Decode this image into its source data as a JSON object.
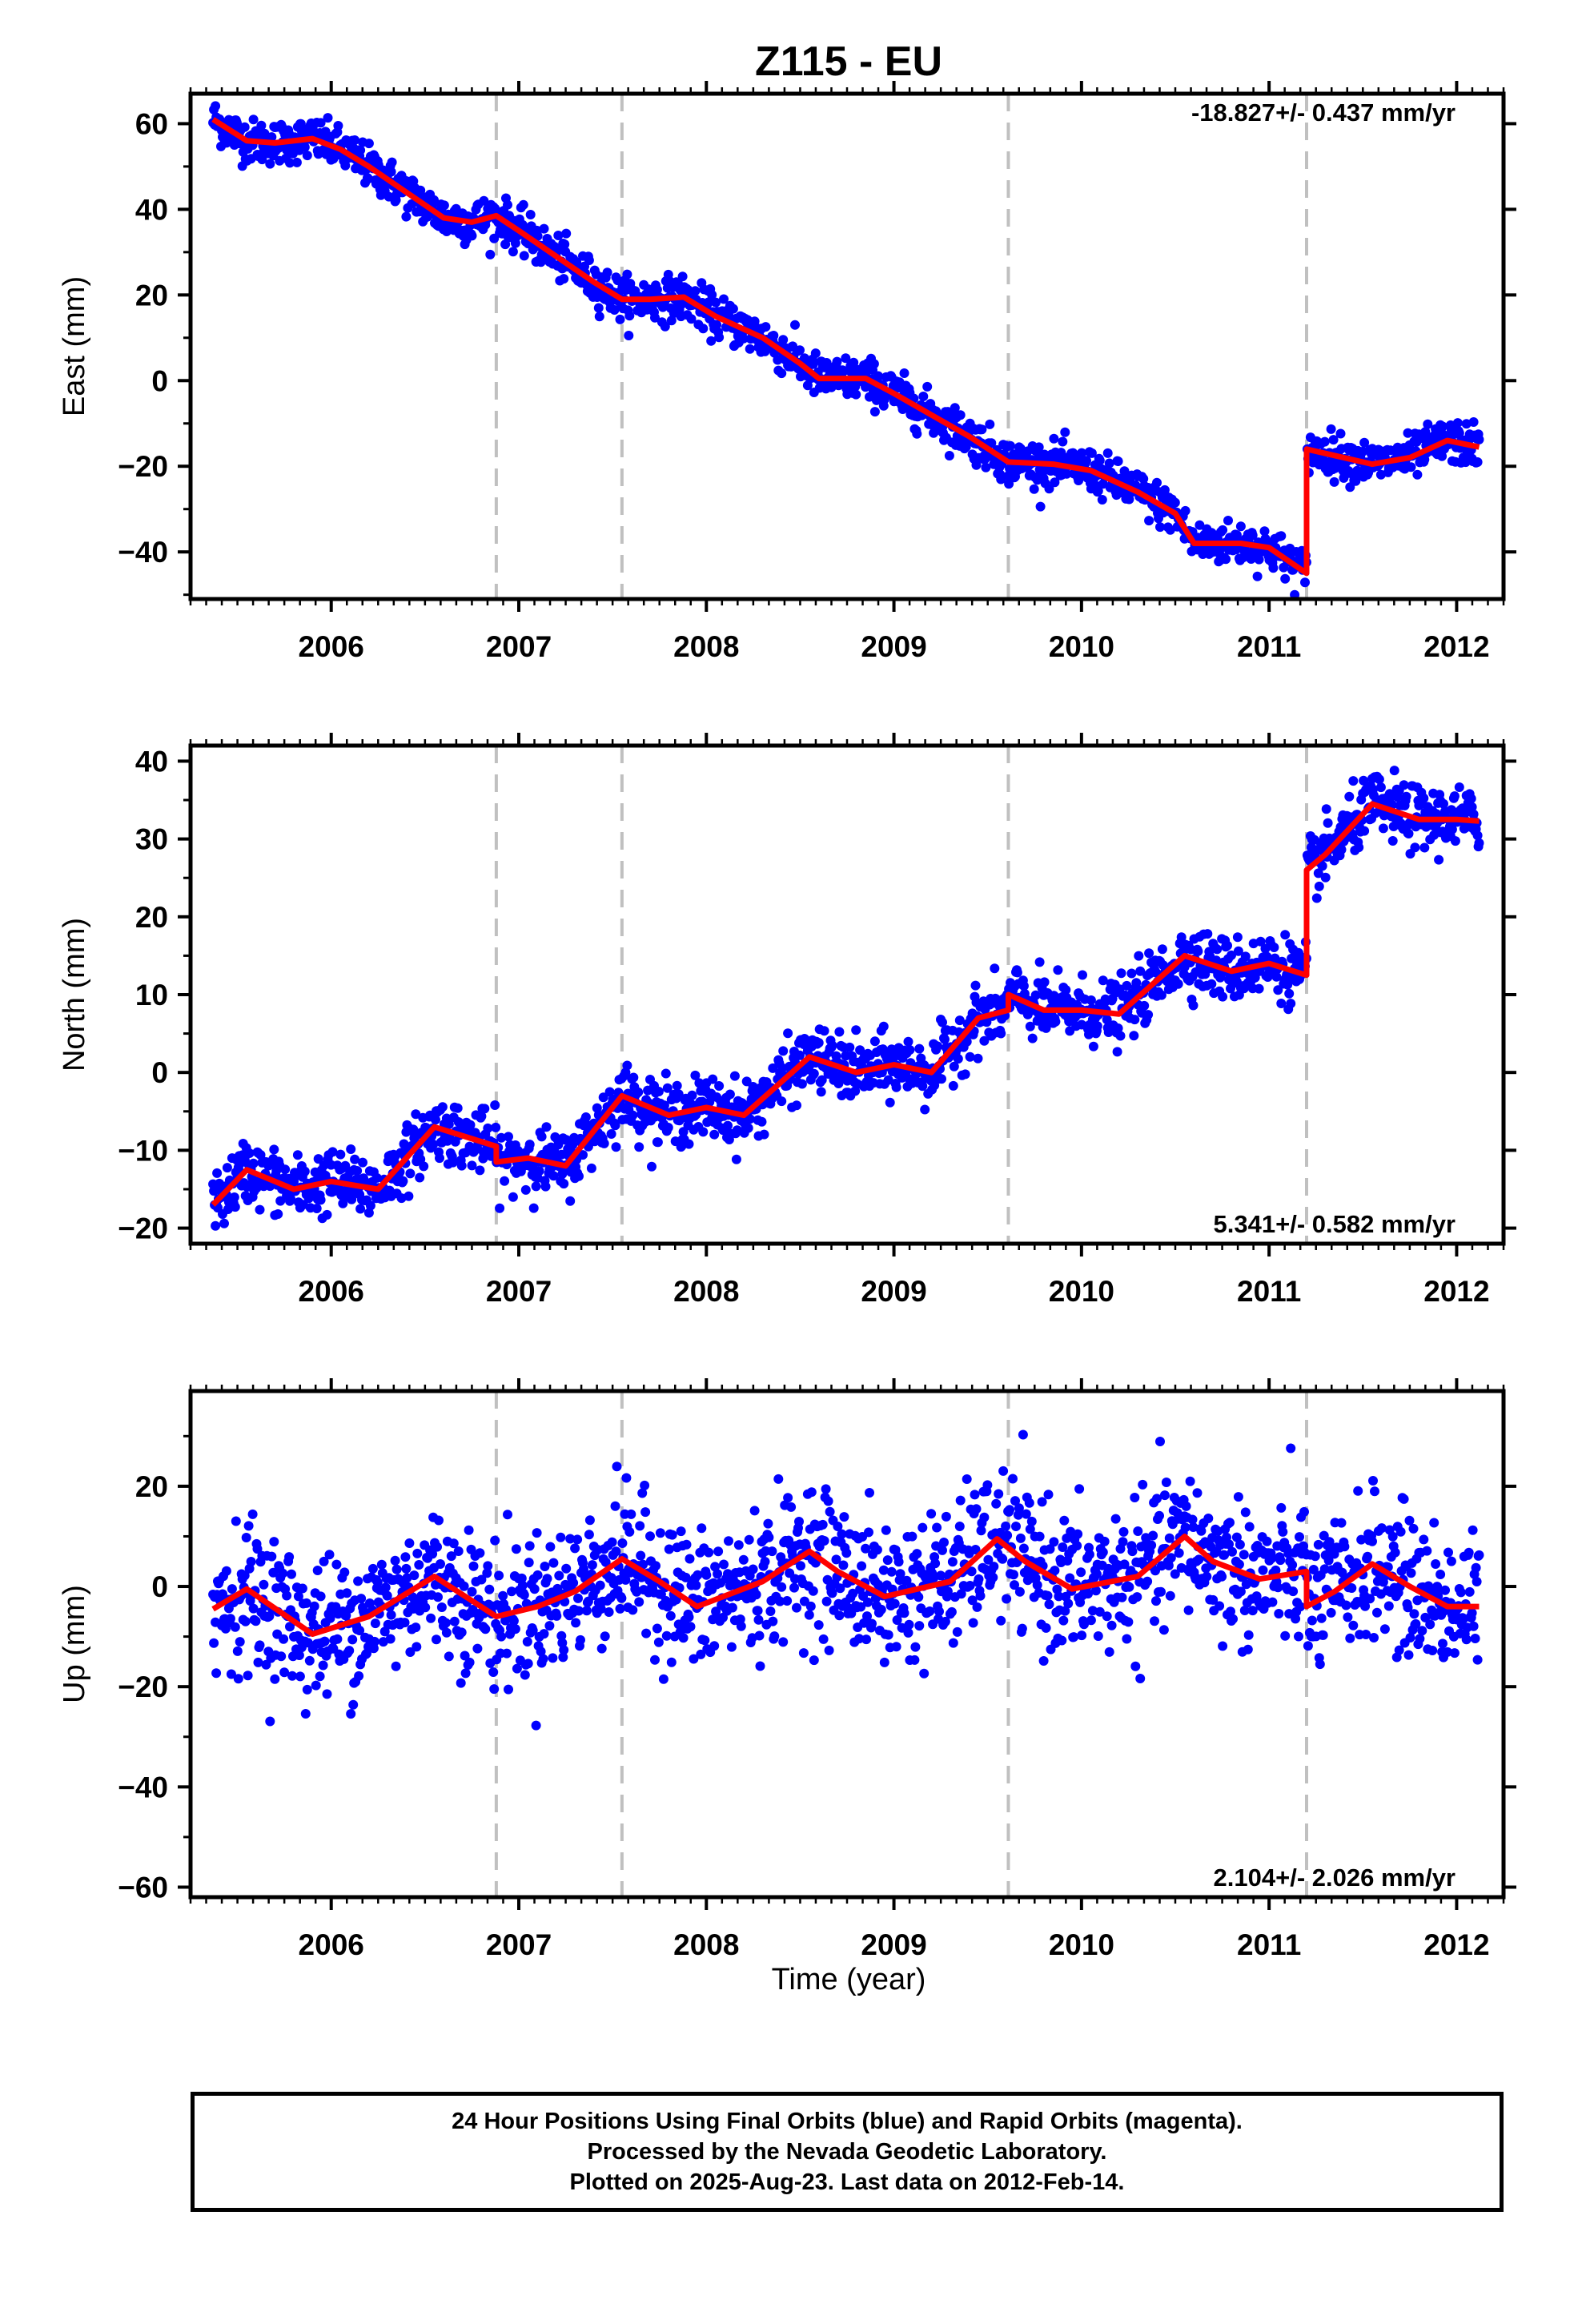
{
  "title": "Z115 - EU",
  "xlabel": "Time (year)",
  "footer": {
    "line1": "24 Hour Positions Using Final Orbits (blue) and Rapid Orbits (magenta).",
    "line2": "Processed by the Nevada Geodetic Laboratory.",
    "line3": "Plotted on 2025-Aug-23. Last data on 2012-Feb-14."
  },
  "colors": {
    "points": "#0000ff",
    "model": "#ff0000",
    "breaks": "#c0c0c0",
    "axes": "#000000"
  },
  "chart_data": [
    {
      "type": "scatter",
      "ylabel": "East (mm)",
      "rate_label": "-18.827+/- 0.437 mm/yr",
      "xlim": [
        2005.25,
        2012.25
      ],
      "ylim": [
        -51,
        67
      ],
      "yticks": [
        -40,
        -20,
        0,
        20,
        40,
        60
      ],
      "xticks": [
        2006,
        2007,
        2008,
        2009,
        2010,
        2011,
        2012
      ],
      "break_lines": [
        2006.88,
        2007.55,
        2009.61,
        2011.2
      ],
      "points_scatter_mm": 2.5,
      "model": {
        "x": [
          2005.37,
          2005.55,
          2005.7,
          2005.9,
          2006.05,
          2006.2,
          2006.4,
          2006.6,
          2006.75,
          2006.88,
          2007.0,
          2007.2,
          2007.4,
          2007.55,
          2007.7,
          2007.88,
          2008.05,
          2008.3,
          2008.5,
          2008.6,
          2008.85,
          2009.0,
          2009.2,
          2009.4,
          2009.61,
          2009.85,
          2010.05,
          2010.3,
          2010.5,
          2010.6,
          2010.85,
          2011.0,
          2011.2,
          2011.2,
          2011.3,
          2011.55,
          2011.75,
          2011.95,
          2012.12
        ],
        "y": [
          61,
          56,
          55.5,
          56.5,
          54,
          50,
          44,
          38,
          37,
          38.5,
          35,
          29,
          23,
          19,
          19,
          19.5,
          15,
          10,
          4,
          0.5,
          0.5,
          -3,
          -8,
          -13,
          -19,
          -19.5,
          -21,
          -26,
          -31,
          -38,
          -38,
          -39,
          -45,
          -16,
          -17,
          -19.5,
          -18,
          -14,
          -15.5
        ]
      }
    },
    {
      "type": "scatter",
      "ylabel": "North (mm)",
      "rate_label": "5.341+/- 0.582 mm/yr",
      "xlim": [
        2005.25,
        2012.25
      ],
      "ylim": [
        -22,
        42
      ],
      "yticks": [
        -20,
        -10,
        0,
        10,
        20,
        30,
        40
      ],
      "xticks": [
        2006,
        2007,
        2008,
        2009,
        2010,
        2011,
        2012
      ],
      "break_lines": [
        2006.88,
        2007.55,
        2009.61,
        2011.2
      ],
      "points_scatter_mm": 2.0,
      "model": {
        "x": [
          2005.37,
          2005.55,
          2005.8,
          2006.0,
          2006.25,
          2006.55,
          2006.88,
          2006.88,
          2007.05,
          2007.25,
          2007.55,
          2007.8,
          2008.0,
          2008.2,
          2008.55,
          2008.8,
          2009.0,
          2009.2,
          2009.45,
          2009.61,
          2009.61,
          2009.8,
          2010.0,
          2010.2,
          2010.55,
          2010.8,
          2011.0,
          2011.2,
          2011.2,
          2011.3,
          2011.55,
          2011.8,
          2012.0,
          2012.12
        ],
        "y": [
          -17,
          -12.5,
          -15,
          -14,
          -15,
          -7,
          -9.5,
          -11.5,
          -11,
          -12,
          -3,
          -5.5,
          -4.5,
          -5.5,
          2,
          0,
          1,
          0,
          7,
          8,
          10,
          8,
          8,
          7.5,
          15,
          13,
          14,
          12.5,
          26,
          28,
          34.5,
          32.5,
          32.5,
          32.3
        ]
      }
    },
    {
      "type": "scatter",
      "ylabel": "Up (mm)",
      "rate_label": "2.104+/- 2.026 mm/yr",
      "xlim": [
        2005.25,
        2012.25
      ],
      "ylim": [
        -62,
        39
      ],
      "yticks": [
        -60,
        -40,
        -20,
        0,
        20
      ],
      "xticks": [
        2006,
        2007,
        2008,
        2009,
        2010,
        2011,
        2012
      ],
      "break_lines": [
        2006.88,
        2007.55,
        2009.61,
        2011.2
      ],
      "points_scatter_mm": 7.0,
      "model": {
        "x": [
          2005.37,
          2005.55,
          2005.9,
          2006.2,
          2006.55,
          2006.88,
          2007.1,
          2007.3,
          2007.55,
          2007.75,
          2007.95,
          2008.3,
          2008.55,
          2008.7,
          2008.95,
          2009.3,
          2009.55,
          2009.7,
          2009.95,
          2010.3,
          2010.55,
          2010.7,
          2010.95,
          2011.2,
          2011.2,
          2011.35,
          2011.55,
          2011.75,
          2011.95,
          2012.12
        ],
        "y": [
          -4.5,
          -0.5,
          -9.5,
          -6,
          2,
          -6,
          -4,
          -1,
          5.5,
          1,
          -4,
          1,
          7,
          3,
          -2,
          1,
          9.5,
          5,
          -0.5,
          2,
          10,
          5,
          1.5,
          3,
          -4,
          -1,
          4.5,
          0,
          -4,
          -4
        ]
      }
    }
  ]
}
